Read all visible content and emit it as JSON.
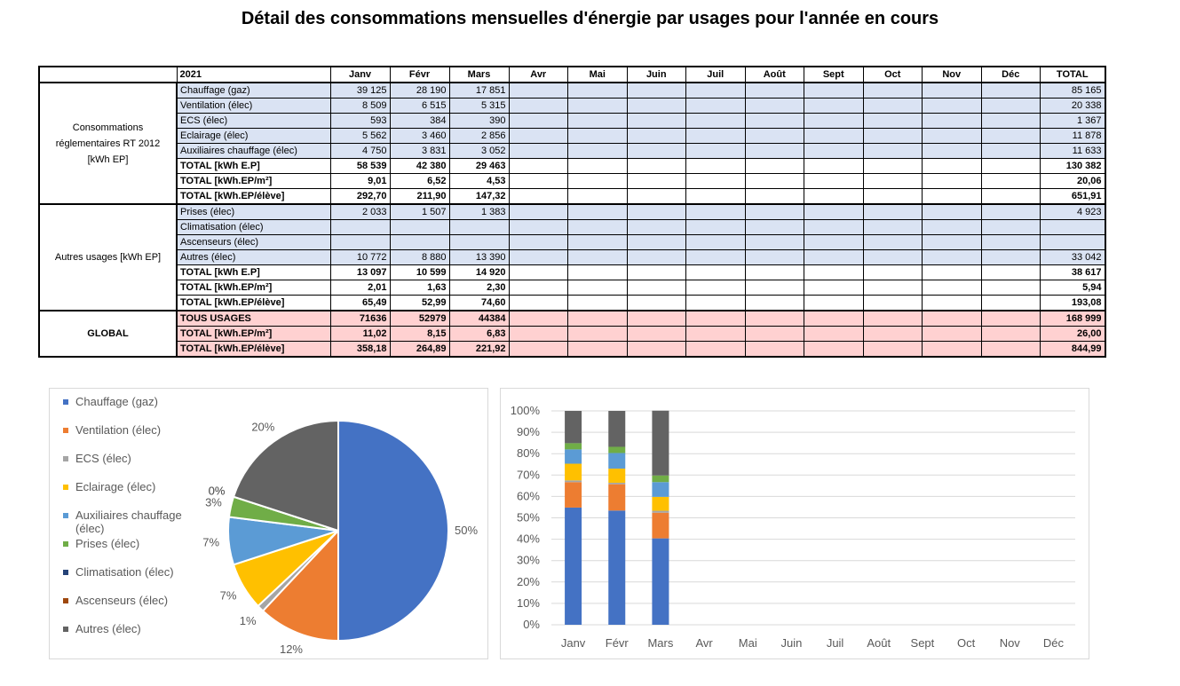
{
  "title": "Détail des consommations mensuelles d'énergie par usages pour l'année en cours",
  "table": {
    "header": [
      "2021",
      "Janv",
      "Févr",
      "Mars",
      "Avr",
      "Mai",
      "Juin",
      "Juil",
      "Août",
      "Sept",
      "Oct",
      "Nov",
      "Déc",
      "TOTAL"
    ],
    "groups": [
      {
        "label": "Consommations réglementaires RT 2012 [kWh EP]",
        "rows": [
          {
            "label": "Chauffage (gaz)",
            "values": [
              "39 125",
              "28 190",
              "17 851"
            ],
            "total": "85 165"
          },
          {
            "label": "Ventilation (élec)",
            "values": [
              "8 509",
              "6 515",
              "5 315"
            ],
            "total": "20 338"
          },
          {
            "label": "ECS (élec)",
            "values": [
              "593",
              "384",
              "390"
            ],
            "total": "1 367"
          },
          {
            "label": "Eclairage (élec)",
            "values": [
              "5 562",
              "3 460",
              "2 856"
            ],
            "total": "11 878"
          },
          {
            "label": "Auxiliaires chauffage (élec)",
            "values": [
              "4 750",
              "3 831",
              "3 052"
            ],
            "total": "11 633"
          },
          {
            "label": "TOTAL [kWh E.P]",
            "values": [
              "58 539",
              "42 380",
              "29 463"
            ],
            "total": "130 382"
          },
          {
            "label": "TOTAL [kWh.EP/m²]",
            "values": [
              "9,01",
              "6,52",
              "4,53"
            ],
            "total": "20,06"
          },
          {
            "label": "TOTAL [kWh.EP/élève]",
            "values": [
              "292,70",
              "211,90",
              "147,32"
            ],
            "total": "651,91"
          }
        ]
      },
      {
        "label": "Autres usages [kWh EP]",
        "rows": [
          {
            "label": "Prises (élec)",
            "values": [
              "2 033",
              "1 507",
              "1 383"
            ],
            "total": "4 923"
          },
          {
            "label": "Climatisation (élec)"
          },
          {
            "label": "Ascenseurs (élec)"
          },
          {
            "label": "Autres (élec)",
            "values": [
              "10 772",
              "8 880",
              "13 390"
            ],
            "total": "33 042"
          },
          {
            "label": "TOTAL [kWh E.P]",
            "values": [
              "13 097",
              "10 599",
              "14 920"
            ],
            "total": "38 617"
          },
          {
            "label": "TOTAL [kWh.EP/m²]",
            "values": [
              "2,01",
              "1,63",
              "2,30"
            ],
            "total": "5,94"
          },
          {
            "label": "TOTAL [kWh.EP/élève]",
            "values": [
              "65,49",
              "52,99",
              "74,60"
            ],
            "total": "193,08"
          }
        ]
      },
      {
        "label": "GLOBAL",
        "rows": [
          {
            "label": "TOUS USAGES",
            "values": [
              "71636",
              "52979",
              "44384"
            ],
            "total": "168 999"
          },
          {
            "label": "TOTAL [kWh.EP/m²]",
            "values": [
              "11,02",
              "8,15",
              "6,83"
            ],
            "total": "26,00"
          },
          {
            "label": "TOTAL [kWh.EP/élève]",
            "values": [
              "358,18",
              "264,89",
              "221,92"
            ],
            "total": "844,99"
          }
        ]
      }
    ]
  },
  "chart_data": [
    {
      "type": "pie",
      "categories": [
        "Chauffage (gaz)",
        "Ventilation (élec)",
        "ECS (élec)",
        "Eclairage (élec)",
        "Auxiliaires chauffage (élec)",
        "Prises (élec)",
        "Climatisation (élec)",
        "Ascenseurs (élec)",
        "Autres (élec)"
      ],
      "values": [
        50,
        12,
        1,
        7,
        7,
        3,
        0,
        0,
        20
      ],
      "value_labels": [
        "50%",
        "12%",
        "1%",
        "7%",
        "7%",
        "3%",
        "0%",
        "0%",
        "20%"
      ],
      "colors": [
        "#4472c4",
        "#ed7d31",
        "#a5a5a5",
        "#ffc000",
        "#5b9bd5",
        "#70ad47",
        "#264478",
        "#9e480e",
        "#636363"
      ],
      "legend": "left"
    },
    {
      "type": "bar",
      "stacked": true,
      "categories": [
        "Janv",
        "Févr",
        "Mars",
        "Avr",
        "Mai",
        "Juin",
        "Juil",
        "Août",
        "Sept",
        "Oct",
        "Nov",
        "Déc"
      ],
      "series": [
        {
          "color": "#4472c4",
          "values": [
            54.8,
            53.4,
            40.4,
            null,
            null,
            null,
            null,
            null,
            null,
            null,
            null,
            null
          ]
        },
        {
          "color": "#ed7d31",
          "values": [
            11.9,
            12.3,
            12.0,
            null,
            null,
            null,
            null,
            null,
            null,
            null,
            null,
            null
          ]
        },
        {
          "color": "#a5a5a5",
          "values": [
            0.8,
            0.7,
            0.9,
            null,
            null,
            null,
            null,
            null,
            null,
            null,
            null,
            null
          ]
        },
        {
          "color": "#ffc000",
          "values": [
            7.8,
            6.6,
            6.5,
            null,
            null,
            null,
            null,
            null,
            null,
            null,
            null,
            null
          ]
        },
        {
          "color": "#5b9bd5",
          "values": [
            6.7,
            7.3,
            6.9,
            null,
            null,
            null,
            null,
            null,
            null,
            null,
            null,
            null
          ]
        },
        {
          "color": "#70ad47",
          "values": [
            2.9,
            2.9,
            3.1,
            null,
            null,
            null,
            null,
            null,
            null,
            null,
            null,
            null
          ]
        },
        {
          "color": "#264478",
          "values": [
            0,
            0,
            0,
            null,
            null,
            null,
            null,
            null,
            null,
            null,
            null,
            null
          ]
        },
        {
          "color": "#9e480e",
          "values": [
            0,
            0,
            0,
            null,
            null,
            null,
            null,
            null,
            null,
            null,
            null,
            null
          ]
        },
        {
          "color": "#636363",
          "values": [
            15.1,
            16.8,
            30.3,
            null,
            null,
            null,
            null,
            null,
            null,
            null,
            null,
            null
          ]
        }
      ],
      "ylim": [
        0,
        100
      ],
      "yticks": [
        {
          "value": 0,
          "label": "0%"
        },
        {
          "value": 10,
          "label": "10%"
        },
        {
          "value": 20,
          "label": "20%"
        },
        {
          "value": 30,
          "label": "30%"
        },
        {
          "value": 40,
          "label": "40%"
        },
        {
          "value": 50,
          "label": "50%"
        },
        {
          "value": 60,
          "label": "60%"
        },
        {
          "value": 70,
          "label": "70%"
        },
        {
          "value": 80,
          "label": "80%"
        },
        {
          "value": 90,
          "label": "90%"
        },
        {
          "value": 100,
          "label": "100%"
        }
      ],
      "grid": true
    }
  ]
}
